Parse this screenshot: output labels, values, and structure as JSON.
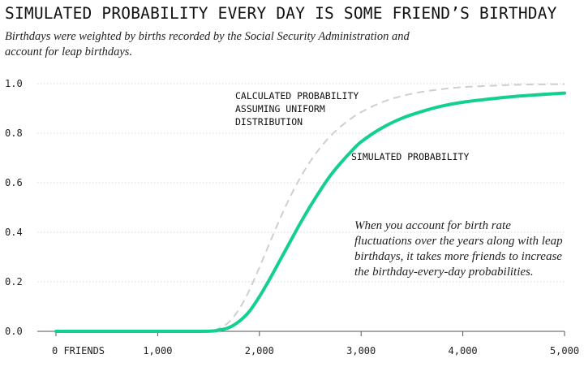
{
  "chart_data": {
    "type": "line",
    "title": "SIMULATED PROBABILITY EVERY DAY IS SOME FRIEND’S BIRTHDAY",
    "subtitle": "Birthdays were weighted by births recorded by the Social Security Administration and account for leap birthdays.",
    "xlabel": "",
    "ylabel": "",
    "xlim": [
      0,
      5000
    ],
    "ylim": [
      0,
      1.0
    ],
    "x_ticks": [
      0,
      1000,
      2000,
      3000,
      4000,
      5000
    ],
    "x_tick_labels": [
      "0 FRIENDS",
      "1,000",
      "2,000",
      "3,000",
      "4,000",
      "5,000"
    ],
    "y_ticks": [
      0,
      0.2,
      0.4,
      0.6,
      0.8,
      1.0
    ],
    "y_tick_labels": [
      "0.0",
      "0.2",
      "0.4",
      "0.6",
      "0.8",
      "1.0"
    ],
    "grid": "horizontal dotted",
    "series": [
      {
        "name": "CALCULATED PROBABILITY ASSUMING UNIFORM DISTRIBUTION",
        "style": "dashed",
        "color": "#cfcfcf",
        "x": [
          0,
          1000,
          1400,
          1500,
          1600,
          1700,
          1800,
          1900,
          2000,
          2100,
          2200,
          2300,
          2400,
          2500,
          2600,
          2700,
          2800,
          2900,
          3000,
          3200,
          3400,
          3600,
          3800,
          4000,
          4500,
          5000
        ],
        "y": [
          0,
          0,
          0.0002,
          0.002,
          0.011,
          0.037,
          0.089,
          0.165,
          0.258,
          0.356,
          0.452,
          0.541,
          0.619,
          0.686,
          0.742,
          0.789,
          0.827,
          0.859,
          0.885,
          0.924,
          0.95,
          0.967,
          0.978,
          0.986,
          0.995,
          0.998
        ]
      },
      {
        "name": "SIMULATED PROBABILITY",
        "style": "solid",
        "color": "#14d08e",
        "x": [
          0,
          1000,
          1500,
          1600,
          1700,
          1800,
          1900,
          2000,
          2100,
          2200,
          2300,
          2400,
          2500,
          2600,
          2700,
          2800,
          2900,
          3000,
          3200,
          3400,
          3600,
          3800,
          4000,
          4200,
          4500,
          5000
        ],
        "y": [
          0,
          0,
          0.0005,
          0.005,
          0.015,
          0.04,
          0.08,
          0.14,
          0.21,
          0.285,
          0.36,
          0.435,
          0.505,
          0.57,
          0.63,
          0.68,
          0.725,
          0.765,
          0.82,
          0.86,
          0.888,
          0.91,
          0.925,
          0.935,
          0.948,
          0.962
        ]
      }
    ],
    "annotations": [
      "CALCULATED PROBABILITY",
      "ASSUMING UNIFORM",
      "DISTRIBUTION",
      "SIMULATED PROBABILITY"
    ],
    "note": "When you account for birth rate fluctuations over the years along with leap birthdays, it takes more friends to increase the birthday-every-day probabilities."
  }
}
